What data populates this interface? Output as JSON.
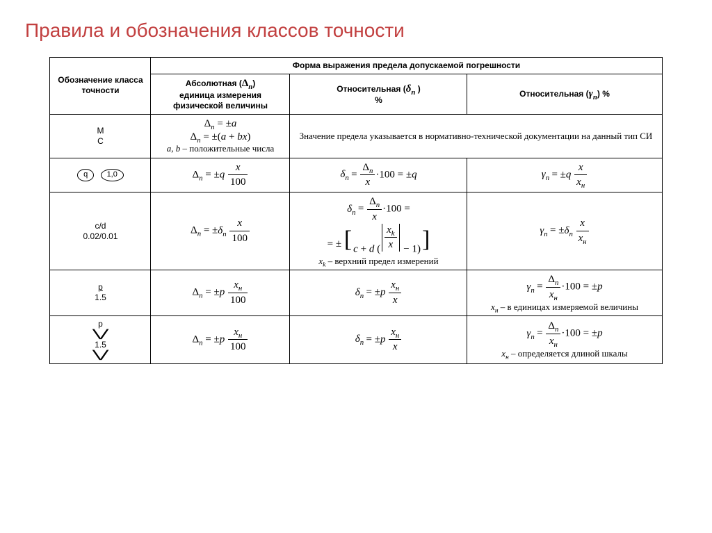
{
  "title": "Правила и обозначения классов точности",
  "header": {
    "col0": "Обозначение класса точности",
    "groupTop": "Форма выражения предела допускаемой погрешности",
    "col1_line1": "Абсолютная (",
    "col1_line2": "единица измерения физической величины",
    "col2_line1": "Относительная (",
    "col2_line2": "%",
    "col3_line1": "Относительная (",
    "col3_line2": ") %",
    "Delta_n": "Δₙ",
    "delta_n": "δₙ",
    "gamma_n": "γₙ"
  },
  "rows": [
    {
      "designation": {
        "lines": [
          "M",
          "C"
        ]
      },
      "abs": {
        "f1": "Δₙ = ± a",
        "f2": "Δₙ = ± (a + bx)",
        "note": "a, b – положительные числа"
      },
      "merged23": "Значение предела указывается в нормативно-технической документации на данный тип СИ"
    },
    {
      "designation": {
        "ovals": [
          "q",
          "1,0"
        ]
      },
      "abs": {
        "sym": "Δ",
        "eq": "= ±q",
        "num": "x",
        "den": "100"
      },
      "rel": {
        "sym": "δ",
        "pre": "=",
        "num": "Δₙ",
        "den": "x",
        "tail": "·100 = ±q"
      },
      "gamma": {
        "sym": "γ",
        "eq": "= ±q",
        "num": "x",
        "den": "xₙ"
      }
    },
    {
      "designation": {
        "lines": [
          "c/d",
          "0.02/0.01"
        ]
      },
      "abs": {
        "sym": "Δ",
        "eq": "= ±δₙ",
        "num": "x",
        "den": "100"
      },
      "rel_complex": {
        "line1": {
          "sym": "δ",
          "pre": "=",
          "num": "Δₙ",
          "den": "x",
          "tail": "·100 ="
        },
        "line2": {
          "pm": "= ±",
          "c": "c + d",
          "num": "xₖ",
          "den": "x",
          "minus1": "− 1"
        },
        "note": "xₖ – верхний предел измерений"
      },
      "gamma": {
        "sym": "γ",
        "eq": "= ±δₙ",
        "num": "x",
        "den": "xₙ"
      }
    },
    {
      "designation": {
        "lines": [
          "p",
          "1.5"
        ]
      },
      "abs": {
        "sym": "Δ",
        "eq": "= ±p",
        "num": "xₙ",
        "den": "100"
      },
      "rel": {
        "sym": "δ",
        "eq": "= ±p",
        "num": "xₙ",
        "den": "x"
      },
      "gamma_ext": {
        "top": {
          "sym": "γ",
          "pre": "=",
          "num": "Δₙ",
          "den": "xₙ",
          "tail": "·100 = ±p"
        },
        "note": "xₙ – в единицах измеряемой величины"
      }
    },
    {
      "designation": {
        "style": "chevron",
        "lines": [
          "p",
          "1.5"
        ]
      },
      "abs": {
        "sym": "Δ",
        "eq": "= ±p",
        "num": "xₙ",
        "den": "100"
      },
      "rel": {
        "sym": "δ",
        "eq": "= ±p",
        "num": "xₙ",
        "den": "x"
      },
      "gamma_ext": {
        "top": {
          "sym": "γ",
          "pre": "=",
          "num": "Δₙ",
          "den": "xₙ",
          "tail": "·100 = ±p"
        },
        "note": "xₙ – определяется длиной шкалы"
      }
    }
  ],
  "colors": {
    "title": "#c24040",
    "border": "#000000",
    "bg": "#ffffff"
  }
}
